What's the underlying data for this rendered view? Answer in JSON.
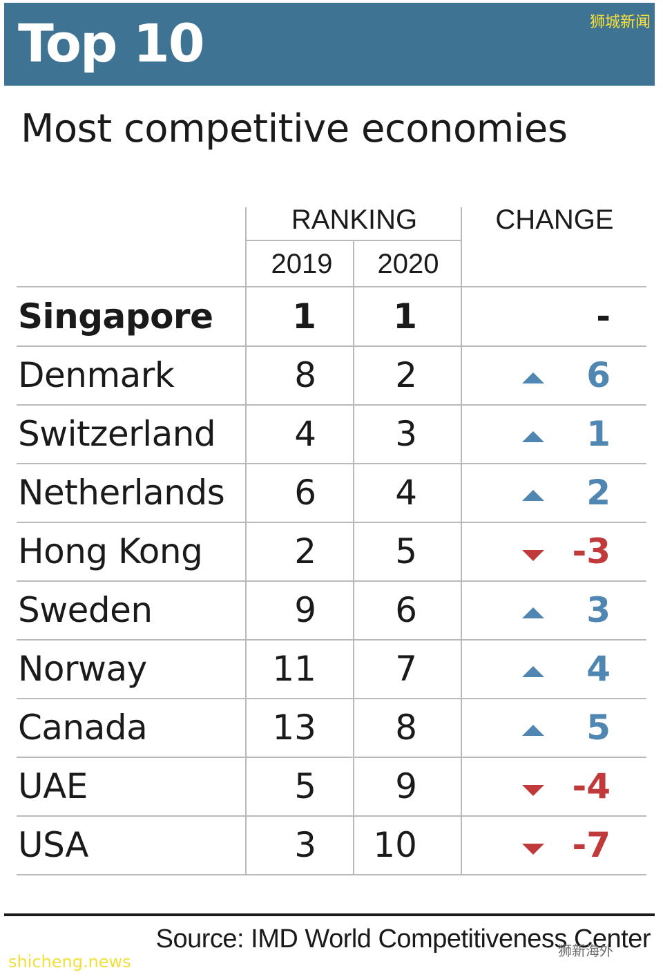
{
  "banner": {
    "title": "Top 10",
    "watermark": "狮城新闻"
  },
  "subtitle": "Most competitive economies",
  "header": {
    "ranking": "RANKING",
    "change": "CHANGE",
    "year_a": "2019",
    "year_b": "2020"
  },
  "colors": {
    "banner": "#3f7394",
    "up": "#4f86b2",
    "down": "#c0393b"
  },
  "chart_data": {
    "type": "table",
    "title": "Most competitive economies",
    "columns": [
      "",
      "2019",
      "2020",
      "CHANGE"
    ],
    "rows": [
      {
        "country": "Singapore",
        "rank_2019": "1",
        "rank_2020": "1",
        "change": "-",
        "direction": "none"
      },
      {
        "country": "Denmark",
        "rank_2019": "8",
        "rank_2020": "2",
        "change": "6",
        "direction": "up"
      },
      {
        "country": "Switzerland",
        "rank_2019": "4",
        "rank_2020": "3",
        "change": "1",
        "direction": "up"
      },
      {
        "country": "Netherlands",
        "rank_2019": "6",
        "rank_2020": "4",
        "change": "2",
        "direction": "up"
      },
      {
        "country": "Hong Kong",
        "rank_2019": "2",
        "rank_2020": "5",
        "change": "-3",
        "direction": "down"
      },
      {
        "country": "Sweden",
        "rank_2019": "9",
        "rank_2020": "6",
        "change": "3",
        "direction": "up"
      },
      {
        "country": "Norway",
        "rank_2019": "11",
        "rank_2020": "7",
        "change": "4",
        "direction": "up"
      },
      {
        "country": "Canada",
        "rank_2019": "13",
        "rank_2020": "8",
        "change": "5",
        "direction": "up"
      },
      {
        "country": "UAE",
        "rank_2019": "5",
        "rank_2020": "9",
        "change": "-4",
        "direction": "down"
      },
      {
        "country": "USA",
        "rank_2019": "3",
        "rank_2020": "10",
        "change": "-7",
        "direction": "down"
      }
    ]
  },
  "footer": {
    "source": "Source: IMD World Competitiveness Center",
    "watermark_left": "shicheng.news",
    "watermark_right": "狮新海外"
  }
}
